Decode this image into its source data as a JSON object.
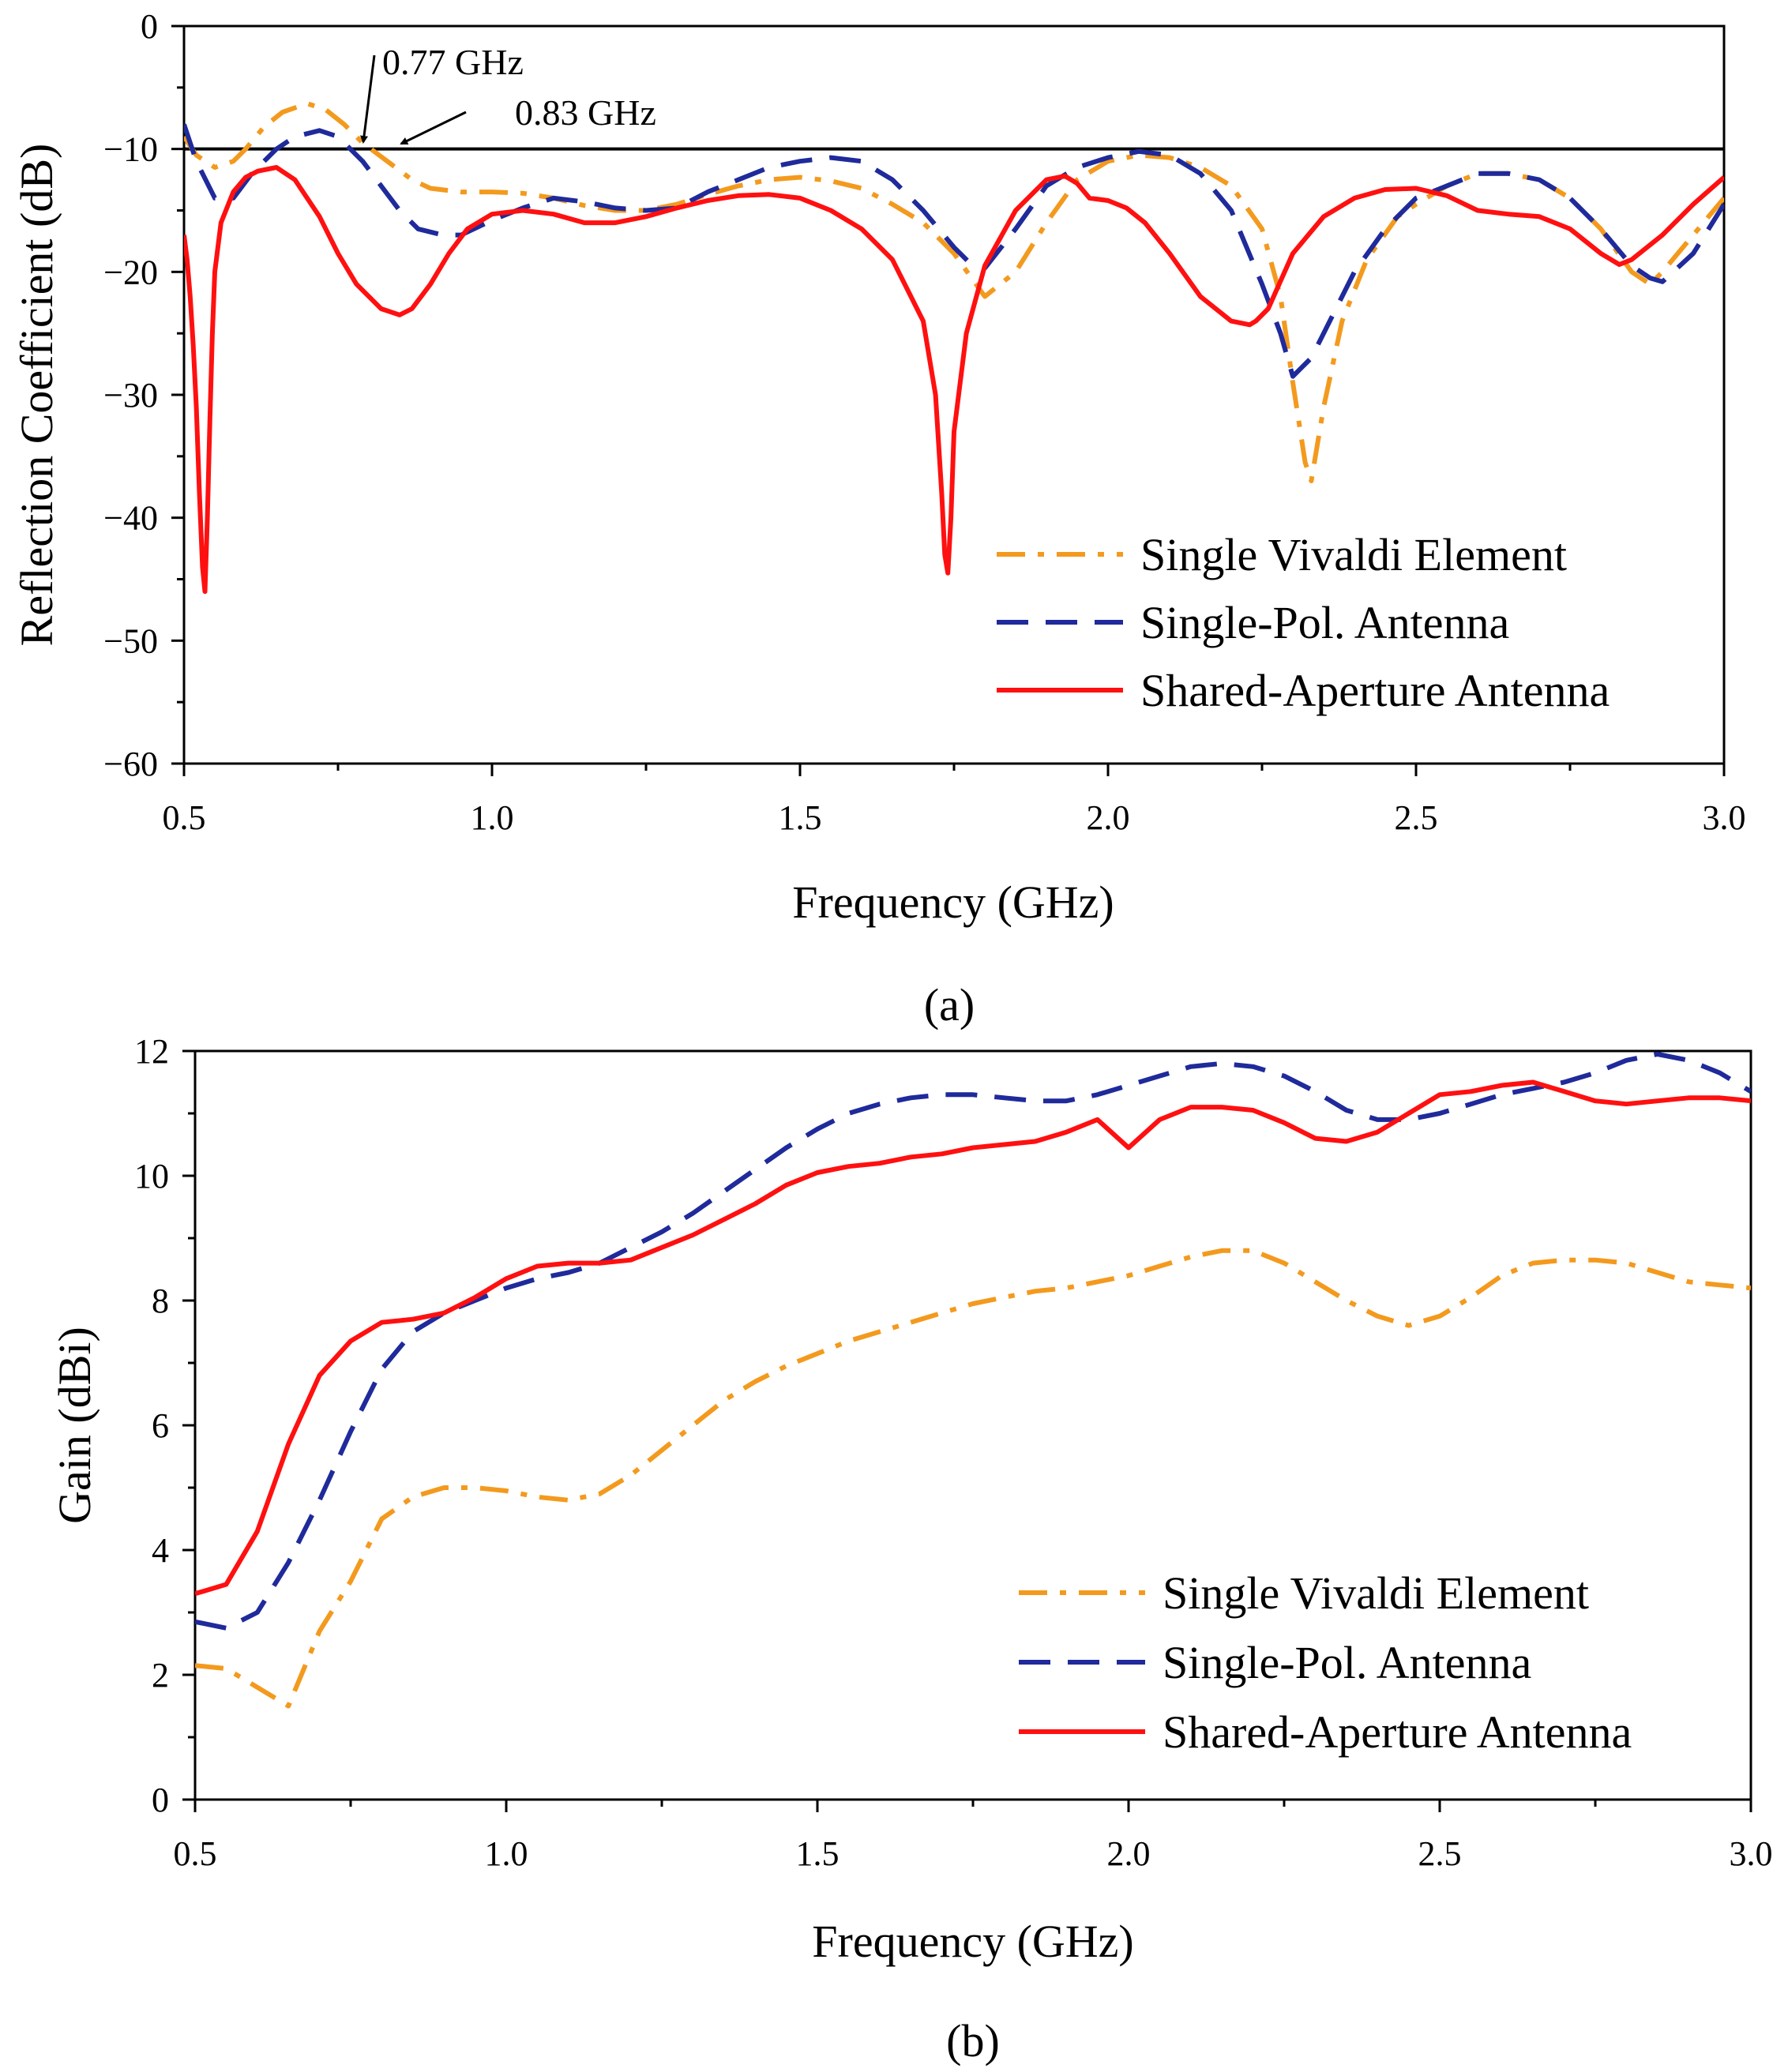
{
  "chart_data": [
    {
      "id": "a",
      "type": "line",
      "caption": "(a)",
      "xlabel": "Frequency (GHz)",
      "ylabel": "Reflection Coefficient (dB)",
      "xlim": [
        0.5,
        3.0
      ],
      "ylim": [
        -60,
        0
      ],
      "xticks": [
        0.5,
        1.0,
        1.5,
        2.0,
        2.5,
        3.0
      ],
      "xtick_labels": [
        "0.5",
        "1.0",
        "1.5",
        "2.0",
        "2.5",
        "3.0"
      ],
      "yticks": [
        0,
        -10,
        -20,
        -30,
        -40,
        -50,
        -60
      ],
      "ytick_labels": [
        "0",
        "−10",
        "−20",
        "−30",
        "−40",
        "−50",
        "−60"
      ],
      "reference_line": {
        "y": -10,
        "color": "#000000"
      },
      "annotations": [
        {
          "text": "0.77 GHz",
          "x": 0.77,
          "y": -10
        },
        {
          "text": "0.83 GHz",
          "x": 0.83,
          "y": -10
        }
      ],
      "legend": {
        "position": "bottom-right",
        "entries": [
          "Single Vivaldi Element",
          "Single-Pol. Antenna",
          "Shared-Aperture Antenna"
        ]
      },
      "series": [
        {
          "name": "Single Vivaldi Element",
          "color": "#f39a1e",
          "style": "dashdot",
          "x": [
            0.5,
            0.52,
            0.55,
            0.58,
            0.6,
            0.63,
            0.66,
            0.7,
            0.73,
            0.76,
            0.79,
            0.83,
            0.87,
            0.9,
            0.95,
            1.0,
            1.05,
            1.1,
            1.15,
            1.2,
            1.25,
            1.3,
            1.35,
            1.4,
            1.45,
            1.5,
            1.55,
            1.6,
            1.65,
            1.7,
            1.75,
            1.8,
            1.85,
            1.9,
            1.95,
            2.0,
            2.05,
            2.1,
            2.15,
            2.2,
            2.25,
            2.28,
            2.3,
            2.32,
            2.33,
            2.35,
            2.38,
            2.42,
            2.47,
            2.5,
            2.55,
            2.6,
            2.65,
            2.7,
            2.75,
            2.8,
            2.85,
            2.88,
            2.9,
            2.95,
            3.0
          ],
          "values": [
            -9,
            -10.5,
            -11.5,
            -11,
            -10,
            -8.2,
            -7,
            -6.3,
            -6.8,
            -8,
            -9.5,
            -11,
            -12.5,
            -13.2,
            -13.5,
            -13.5,
            -13.6,
            -14,
            -14.6,
            -15,
            -15,
            -14.5,
            -13.7,
            -13,
            -12.5,
            -12.3,
            -12.6,
            -13.2,
            -14.5,
            -16,
            -18.5,
            -22,
            -20,
            -16,
            -12.5,
            -11,
            -10.5,
            -10.7,
            -11.5,
            -13,
            -16.5,
            -22,
            -29,
            -35.5,
            -37,
            -31,
            -24,
            -19,
            -15.5,
            -14.5,
            -13,
            -12,
            -12,
            -12.5,
            -14,
            -16.5,
            -20,
            -21,
            -20,
            -17,
            -14
          ]
        },
        {
          "name": "Single-Pol. Antenna",
          "color": "#1f2a9b",
          "style": "dashed",
          "x": [
            0.5,
            0.52,
            0.55,
            0.58,
            0.61,
            0.65,
            0.68,
            0.72,
            0.75,
            0.79,
            0.82,
            0.85,
            0.88,
            0.92,
            0.95,
            1.0,
            1.05,
            1.1,
            1.15,
            1.2,
            1.25,
            1.3,
            1.35,
            1.4,
            1.45,
            1.5,
            1.55,
            1.6,
            1.65,
            1.7,
            1.75,
            1.78,
            1.8,
            1.85,
            1.9,
            1.95,
            2.0,
            2.05,
            2.1,
            2.15,
            2.2,
            2.25,
            2.28,
            2.3,
            2.33,
            2.36,
            2.4,
            2.45,
            2.5,
            2.55,
            2.6,
            2.65,
            2.7,
            2.75,
            2.8,
            2.85,
            2.88,
            2.9,
            2.95,
            3.0
          ],
          "values": [
            -8,
            -11,
            -14,
            -14,
            -12,
            -10,
            -9,
            -8.5,
            -9,
            -11,
            -13,
            -15,
            -16.5,
            -17,
            -17,
            -15.8,
            -14.8,
            -14,
            -14.3,
            -14.8,
            -15,
            -14.8,
            -13.5,
            -12.5,
            -11.5,
            -11,
            -10.7,
            -11,
            -12.5,
            -15,
            -18,
            -19.5,
            -19.7,
            -16.5,
            -13,
            -11.5,
            -10.7,
            -10.2,
            -10.5,
            -12,
            -15,
            -21,
            -25,
            -28.5,
            -27,
            -24,
            -20,
            -16.5,
            -14,
            -13,
            -12,
            -12,
            -12.5,
            -14,
            -16.5,
            -19.5,
            -20.5,
            -20.8,
            -18.5,
            -14.5
          ]
        },
        {
          "name": "Shared-Aperture Antenna",
          "color": "#ff1010",
          "style": "solid",
          "x": [
            0.5,
            0.505,
            0.51,
            0.515,
            0.52,
            0.525,
            0.53,
            0.534,
            0.538,
            0.542,
            0.546,
            0.55,
            0.56,
            0.58,
            0.6,
            0.62,
            0.65,
            0.68,
            0.72,
            0.75,
            0.78,
            0.82,
            0.85,
            0.87,
            0.9,
            0.93,
            0.96,
            1.0,
            1.05,
            1.1,
            1.15,
            1.2,
            1.25,
            1.3,
            1.35,
            1.4,
            1.45,
            1.5,
            1.55,
            1.6,
            1.65,
            1.7,
            1.72,
            1.73,
            1.735,
            1.74,
            1.745,
            1.75,
            1.77,
            1.8,
            1.85,
            1.9,
            1.93,
            1.95,
            1.97,
            2.0,
            2.03,
            2.06,
            2.1,
            2.15,
            2.2,
            2.23,
            2.24,
            2.26,
            2.3,
            2.35,
            2.4,
            2.45,
            2.5,
            2.55,
            2.6,
            2.65,
            2.7,
            2.75,
            2.8,
            2.83,
            2.85,
            2.9,
            2.95,
            3.0
          ],
          "values": [
            -17,
            -19,
            -22,
            -26,
            -31,
            -38,
            -44,
            -46,
            -40,
            -32,
            -25,
            -20,
            -16,
            -13.5,
            -12.3,
            -11.8,
            -11.5,
            -12.5,
            -15.5,
            -18.5,
            -21,
            -23,
            -23.5,
            -23,
            -21,
            -18.5,
            -16.5,
            -15.3,
            -15,
            -15.3,
            -16,
            -16,
            -15.5,
            -14.8,
            -14.2,
            -13.8,
            -13.7,
            -14,
            -15,
            -16.5,
            -19,
            -24,
            -30,
            -38,
            -43,
            -44.5,
            -40,
            -33,
            -25,
            -19.5,
            -15,
            -12.5,
            -12.2,
            -12.8,
            -14,
            -14.2,
            -14.8,
            -16,
            -18.5,
            -22,
            -24,
            -24.3,
            -24,
            -23,
            -18.5,
            -15.5,
            -14,
            -13.3,
            -13.2,
            -13.8,
            -15,
            -15.3,
            -15.5,
            -16.5,
            -18.5,
            -19.4,
            -19,
            -17,
            -14.5,
            -12.3
          ]
        }
      ]
    },
    {
      "id": "b",
      "type": "line",
      "caption": "(b)",
      "xlabel": "Frequency (GHz)",
      "ylabel": "Gain (dBi)",
      "xlim": [
        0.5,
        3.0
      ],
      "ylim": [
        0,
        12
      ],
      "xticks": [
        0.5,
        1.0,
        1.5,
        2.0,
        2.5,
        3.0
      ],
      "xtick_labels": [
        "0.5",
        "1.0",
        "1.5",
        "2.0",
        "2.5",
        "3.0"
      ],
      "yticks": [
        0,
        2,
        4,
        6,
        8,
        10,
        12
      ],
      "ytick_labels": [
        "0",
        "2",
        "4",
        "6",
        "8",
        "10",
        "12"
      ],
      "legend": {
        "position": "bottom-right",
        "entries": [
          "Single Vivaldi Element",
          "Single-Pol. Antenna",
          "Shared-Aperture Antenna"
        ]
      },
      "series": [
        {
          "name": "Single Vivaldi Element",
          "color": "#f39a1e",
          "style": "dashdot",
          "x": [
            0.5,
            0.55,
            0.6,
            0.65,
            0.7,
            0.75,
            0.8,
            0.85,
            0.9,
            0.95,
            1.0,
            1.05,
            1.1,
            1.15,
            1.2,
            1.25,
            1.3,
            1.35,
            1.4,
            1.45,
            1.5,
            1.55,
            1.6,
            1.65,
            1.7,
            1.75,
            1.8,
            1.85,
            1.9,
            1.95,
            2.0,
            2.05,
            2.1,
            2.15,
            2.2,
            2.25,
            2.3,
            2.35,
            2.4,
            2.45,
            2.5,
            2.55,
            2.6,
            2.65,
            2.7,
            2.75,
            2.8,
            2.85,
            2.9,
            2.95,
            3.0
          ],
          "values": [
            2.15,
            2.1,
            1.8,
            1.5,
            2.7,
            3.5,
            4.5,
            4.85,
            5.0,
            5.0,
            4.95,
            4.85,
            4.8,
            4.9,
            5.2,
            5.6,
            6.0,
            6.4,
            6.7,
            6.95,
            7.15,
            7.35,
            7.5,
            7.65,
            7.8,
            7.95,
            8.05,
            8.15,
            8.2,
            8.3,
            8.4,
            8.55,
            8.7,
            8.8,
            8.8,
            8.6,
            8.3,
            8.0,
            7.75,
            7.6,
            7.75,
            8.05,
            8.4,
            8.6,
            8.65,
            8.65,
            8.6,
            8.45,
            8.3,
            8.25,
            8.2
          ]
        },
        {
          "name": "Single-Pol. Antenna",
          "color": "#1f2a9b",
          "style": "dashed",
          "x": [
            0.5,
            0.55,
            0.6,
            0.65,
            0.7,
            0.75,
            0.8,
            0.85,
            0.9,
            0.95,
            1.0,
            1.05,
            1.1,
            1.15,
            1.2,
            1.25,
            1.3,
            1.35,
            1.4,
            1.45,
            1.5,
            1.55,
            1.6,
            1.65,
            1.7,
            1.75,
            1.8,
            1.85,
            1.9,
            1.95,
            2.0,
            2.05,
            2.1,
            2.15,
            2.2,
            2.25,
            2.3,
            2.35,
            2.4,
            2.45,
            2.5,
            2.55,
            2.6,
            2.65,
            2.7,
            2.75,
            2.8,
            2.85,
            2.9,
            2.95,
            3.0
          ],
          "values": [
            2.85,
            2.75,
            3.0,
            3.8,
            4.8,
            5.9,
            6.9,
            7.5,
            7.8,
            8.0,
            8.2,
            8.35,
            8.45,
            8.6,
            8.85,
            9.1,
            9.4,
            9.75,
            10.1,
            10.45,
            10.75,
            11.0,
            11.15,
            11.25,
            11.3,
            11.3,
            11.25,
            11.2,
            11.2,
            11.3,
            11.45,
            11.6,
            11.75,
            11.8,
            11.75,
            11.6,
            11.35,
            11.05,
            10.9,
            10.9,
            11.0,
            11.15,
            11.3,
            11.4,
            11.5,
            11.65,
            11.85,
            11.95,
            11.85,
            11.65,
            11.35
          ]
        },
        {
          "name": "Shared-Aperture Antenna",
          "color": "#ff1010",
          "style": "solid",
          "x": [
            0.5,
            0.55,
            0.6,
            0.65,
            0.7,
            0.75,
            0.8,
            0.85,
            0.9,
            0.95,
            1.0,
            1.05,
            1.1,
            1.15,
            1.2,
            1.25,
            1.3,
            1.35,
            1.4,
            1.45,
            1.5,
            1.55,
            1.6,
            1.65,
            1.7,
            1.75,
            1.8,
            1.85,
            1.9,
            1.95,
            2.0,
            2.05,
            2.1,
            2.15,
            2.2,
            2.25,
            2.3,
            2.35,
            2.4,
            2.45,
            2.5,
            2.55,
            2.6,
            2.65,
            2.7,
            2.75,
            2.8,
            2.85,
            2.9,
            2.95,
            3.0
          ],
          "values": [
            3.3,
            3.45,
            4.3,
            5.7,
            6.8,
            7.35,
            7.65,
            7.7,
            7.8,
            8.05,
            8.35,
            8.55,
            8.6,
            8.6,
            8.65,
            8.85,
            9.05,
            9.3,
            9.55,
            9.85,
            10.05,
            10.15,
            10.2,
            10.3,
            10.35,
            10.45,
            10.5,
            10.55,
            10.7,
            10.9,
            10.45,
            10.9,
            11.1,
            11.1,
            11.05,
            10.85,
            10.6,
            10.55,
            10.7,
            11.0,
            11.3,
            11.35,
            11.45,
            11.5,
            11.35,
            11.2,
            11.15,
            11.2,
            11.25,
            11.25,
            11.2
          ]
        }
      ]
    }
  ]
}
